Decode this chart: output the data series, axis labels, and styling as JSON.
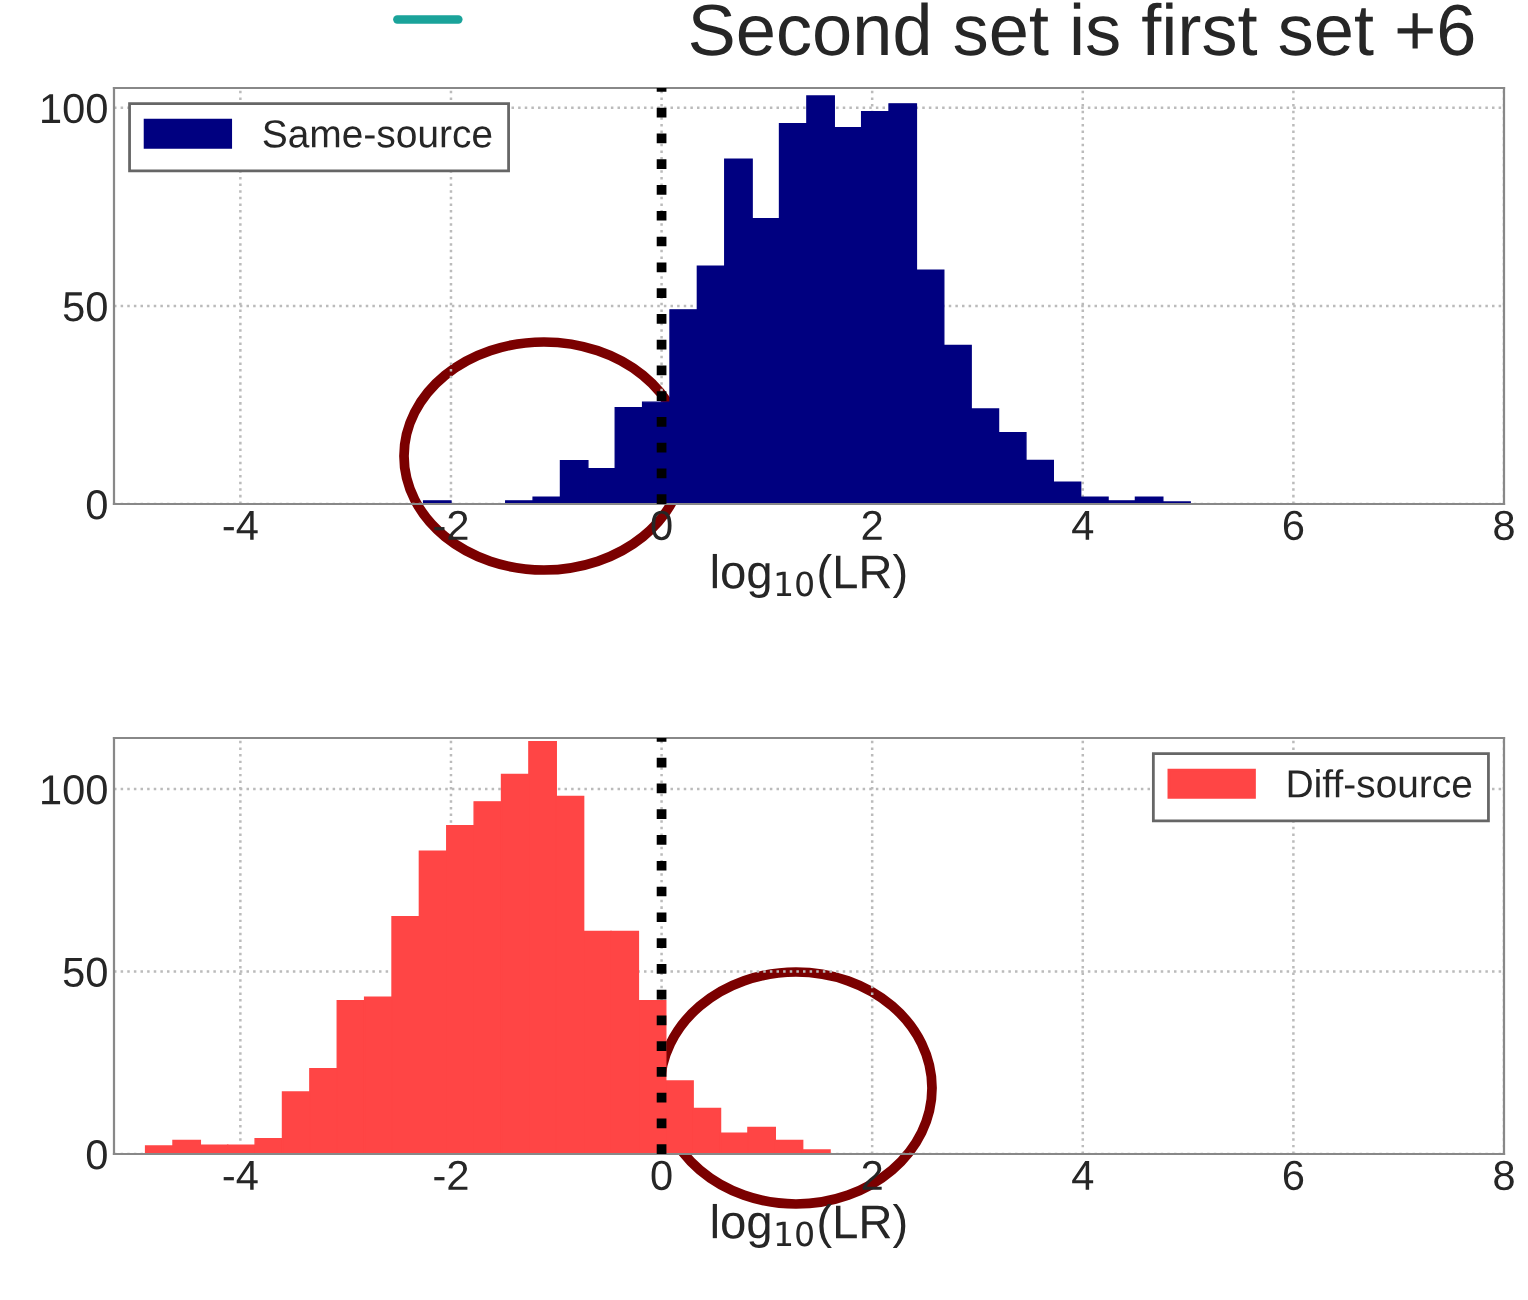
{
  "chart_data": [
    {
      "type": "histogram",
      "annotations": [
        "Second set is first set +6"
      ],
      "xlabel": "log$_{10}$(LR)",
      "bins": [
        -2.26,
        -2.0,
        -1.74,
        -1.48,
        -1.22,
        -0.96,
        -0.7,
        -0.44,
        -0.18,
        0.08,
        0.34,
        0.6,
        0.86,
        1.12,
        1.38,
        1.64,
        1.9,
        2.16,
        2.42,
        2.68,
        2.94,
        3.2,
        3.46,
        3.72,
        3.98,
        4.24,
        4.5,
        4.76,
        5.02
      ],
      "series": [
        {
          "name": "Same-source",
          "color": "#000080",
          "values": [
            0.8,
            0,
            0,
            0.8,
            1.7,
            10.9,
            8.9,
            24.3,
            25.7,
            49,
            60,
            87,
            72,
            96,
            103,
            95,
            99,
            101,
            59,
            40,
            24,
            18,
            11,
            5.5,
            1.7,
            0.8,
            1.7,
            0.5
          ]
        }
      ],
      "xlim": [
        -5.2,
        8
      ],
      "xticks": [
        -4,
        -2,
        0,
        2,
        4,
        6,
        8
      ],
      "ylim": [
        0,
        105
      ],
      "yticks": [
        0,
        50,
        100
      ],
      "grid": true,
      "legend": "top left",
      "ref_lines": [
        {
          "axis": "x",
          "value": 0,
          "color": "#000000",
          "line_style": "dotted"
        }
      ]
    },
    {
      "type": "histogram",
      "xlabel": "log$_{10}$(LR)",
      "bins": [
        -4.9,
        -4.64,
        -4.38,
        -4.12,
        -3.86,
        -3.6,
        -3.34,
        -3.08,
        -2.82,
        -2.56,
        -2.3,
        -2.04,
        -1.78,
        -1.52,
        -1.26,
        -1.0,
        -0.74,
        -0.48,
        -0.22,
        0.04,
        0.3,
        0.56,
        0.82,
        1.08,
        1.34,
        1.6
      ],
      "series": [
        {
          "name": "Diff-source",
          "color": "#ff4545",
          "values": [
            2.2,
            3.7,
            2.4,
            2.4,
            4.2,
            17,
            23.4,
            42,
            43,
            65,
            83,
            90,
            96.5,
            104,
            113,
            98,
            61,
            61,
            42,
            20,
            12.5,
            5.7,
            7.3,
            3.7,
            1.1
          ]
        }
      ],
      "xlim": [
        -5.2,
        8
      ],
      "xticks": [
        -4,
        -2,
        0,
        2,
        4,
        6,
        8
      ],
      "ylim": [
        0,
        114
      ],
      "yticks": [
        0,
        50,
        100
      ],
      "grid": true,
      "legend": "top right",
      "ref_lines": [
        {
          "axis": "x",
          "value": 0,
          "color": "#000000",
          "line_style": "dotted"
        }
      ]
    }
  ]
}
